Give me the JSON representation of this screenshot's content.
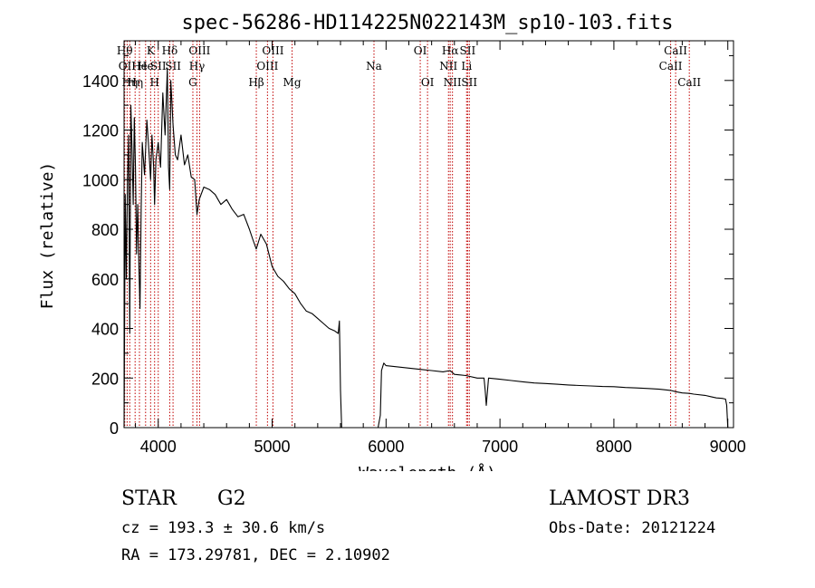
{
  "chart_data": {
    "type": "line",
    "title": "spec-56286-HD114225N022143M_sp10-103.fits",
    "xlabel": "Wavelength (Å)",
    "ylabel": "Flux (relative)",
    "xlim": [
      3700,
      9050
    ],
    "ylim": [
      0,
      1560
    ],
    "xticks": [
      4000,
      5000,
      6000,
      7000,
      8000,
      9000
    ],
    "yticks": [
      0,
      200,
      400,
      600,
      800,
      1000,
      1200,
      1400
    ],
    "xtick_labels": [
      "4000",
      "5000",
      "6000",
      "7000",
      "8000",
      "9000"
    ],
    "ytick_labels": [
      "0",
      "200",
      "400",
      "600",
      "800",
      "1000",
      "1200",
      "1400"
    ],
    "series": [
      {
        "name": "spectrum",
        "x": [
          3700,
          3710,
          3720,
          3730,
          3740,
          3750,
          3760,
          3770,
          3780,
          3790,
          3800,
          3810,
          3820,
          3830,
          3840,
          3850,
          3860,
          3880,
          3900,
          3920,
          3933,
          3945,
          3960,
          3968,
          3980,
          4000,
          4020,
          4040,
          4060,
          4080,
          4090,
          4101,
          4110,
          4130,
          4150,
          4170,
          4200,
          4230,
          4260,
          4290,
          4320,
          4340,
          4360,
          4400,
          4450,
          4500,
          4550,
          4600,
          4650,
          4700,
          4750,
          4800,
          4830,
          4861,
          4900,
          4950,
          5000,
          5050,
          5100,
          5150,
          5200,
          5250,
          5300,
          5350,
          5400,
          5450,
          5500,
          5550,
          5580,
          5590,
          5600,
          5610,
          5620,
          5700,
          5800,
          5900,
          5930,
          5950,
          5960,
          5980,
          6000,
          6100,
          6200,
          6300,
          6400,
          6500,
          6562,
          6600,
          6700,
          6800,
          6860,
          6870,
          6880,
          6900,
          7000,
          7100,
          7200,
          7300,
          7400,
          7500,
          7600,
          7700,
          7800,
          7900,
          8000,
          8100,
          8200,
          8300,
          8400,
          8498,
          8542,
          8600,
          8662,
          8700,
          8800,
          8850,
          8900,
          8950,
          8980,
          8990,
          9000
        ],
        "y": [
          0,
          940,
          600,
          1000,
          1180,
          380,
          1300,
          1120,
          900,
          1250,
          1050,
          700,
          900,
          650,
          480,
          880,
          1150,
          1020,
          1240,
          1100,
          1000,
          1180,
          1050,
          900,
          1080,
          1150,
          1050,
          1350,
          1180,
          1450,
          1050,
          960,
          1400,
          1220,
          1100,
          1080,
          1180,
          1060,
          1100,
          1010,
          1000,
          860,
          920,
          970,
          960,
          940,
          900,
          920,
          880,
          850,
          860,
          800,
          760,
          720,
          780,
          740,
          650,
          610,
          590,
          560,
          540,
          500,
          470,
          460,
          440,
          420,
          400,
          390,
          380,
          430,
          150,
          0,
          0,
          0,
          0,
          0,
          0,
          50,
          230,
          260,
          250,
          245,
          240,
          235,
          230,
          225,
          230,
          215,
          210,
          200,
          200,
          150,
          90,
          200,
          195,
          190,
          185,
          180,
          178,
          175,
          172,
          170,
          168,
          166,
          165,
          162,
          160,
          158,
          155,
          150,
          145,
          140,
          138,
          135,
          130,
          125,
          120,
          118,
          115,
          90,
          0
        ]
      }
    ],
    "lines": [
      {
        "x": 3706,
        "row": 0,
        "label": "Hθ",
        "color": "#c00000"
      },
      {
        "x": 3727,
        "row": 1,
        "label": "OII",
        "color": "#c00000"
      },
      {
        "x": 3750,
        "row": 2,
        "label": "Hη",
        "color": "#c00000"
      },
      {
        "x": 3797,
        "row": 2,
        "label": "Hη",
        "color": "#c00000"
      },
      {
        "x": 3835,
        "row": 1,
        "label": "He",
        "color": "#c00000"
      },
      {
        "x": 3889,
        "row": 1,
        "label": "He",
        "color": "#c00000"
      },
      {
        "x": 3933,
        "row": 0,
        "label": "K",
        "color": "#c00000"
      },
      {
        "x": 3968,
        "row": 2,
        "label": "H",
        "color": "#c00000"
      },
      {
        "x": 4000,
        "row": 1,
        "label": "SII",
        "color": "#c00000"
      },
      {
        "x": 4101,
        "row": 0,
        "label": "Hδ",
        "color": "#c00000"
      },
      {
        "x": 4130,
        "row": 1,
        "label": "SII",
        "color": "#c00000"
      },
      {
        "x": 4304,
        "row": 2,
        "label": "G",
        "color": "#c00000"
      },
      {
        "x": 4340,
        "row": 1,
        "label": "Hγ",
        "color": "#c00000"
      },
      {
        "x": 4363,
        "row": 0,
        "label": "OIII",
        "color": "#c00000"
      },
      {
        "x": 4861,
        "row": 2,
        "label": "Hβ",
        "color": "#c00000"
      },
      {
        "x": 4959,
        "row": 1,
        "label": "OIII",
        "color": "#c00000"
      },
      {
        "x": 5007,
        "row": 0,
        "label": "OIII",
        "color": "#c00000"
      },
      {
        "x": 5175,
        "row": 2,
        "label": "Mg",
        "color": "#c00000"
      },
      {
        "x": 5894,
        "row": 1,
        "label": "Na",
        "color": "#c00000"
      },
      {
        "x": 6300,
        "row": 0,
        "label": "OI",
        "color": "#c00000"
      },
      {
        "x": 6364,
        "row": 2,
        "label": "OI",
        "color": "#c00000"
      },
      {
        "x": 6548,
        "row": 1,
        "label": "NII",
        "color": "#c00000"
      },
      {
        "x": 6563,
        "row": 0,
        "label": "Hα",
        "color": "#c00000"
      },
      {
        "x": 6583,
        "row": 2,
        "label": "NII",
        "color": "#c00000"
      },
      {
        "x": 6716,
        "row": 0,
        "label": "SII",
        "color": "#c00000"
      },
      {
        "x": 6707,
        "row": 1,
        "label": "Li",
        "color": "#c00000"
      },
      {
        "x": 6731,
        "row": 2,
        "label": "SII",
        "color": "#c00000"
      },
      {
        "x": 8498,
        "row": 1,
        "label": "CaII",
        "color": "#c00000"
      },
      {
        "x": 8542,
        "row": 0,
        "label": "CaII",
        "color": "#c00000"
      },
      {
        "x": 8662,
        "row": 2,
        "label": "CaII",
        "color": "#c00000"
      }
    ]
  },
  "info": {
    "class": "STAR",
    "subclass": "G2",
    "survey": "LAMOST DR3",
    "cz": "cz = 193.3 ± 30.6 km/s",
    "obs_date": "Obs-Date: 20121224",
    "radec": "RA = 173.29781, DEC =   2.10902"
  },
  "colors": {
    "spectrum": "#000000",
    "lines": "#c00000",
    "axes": "#000000"
  }
}
